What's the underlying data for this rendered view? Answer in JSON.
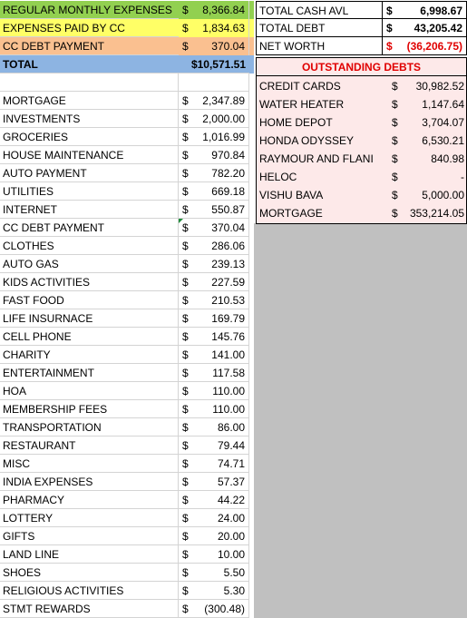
{
  "colors": {
    "green": "#92d050",
    "yellow": "#ffff66",
    "orange": "#fac090",
    "blue": "#8db4e2",
    "debts_bg": "#fde9e9",
    "red_text": "#e00000",
    "dark_green": "#1f8a3a"
  },
  "summary": [
    {
      "label": "REGULAR MONTHLY EXPENSES",
      "cur": "$",
      "value": "8,366.84"
    },
    {
      "label": "EXPENSES PAID BY CC",
      "cur": "$",
      "value": "1,834.63"
    },
    {
      "label": "CC DEBT PAYMENT",
      "cur": "$",
      "value": "370.04"
    },
    {
      "label": "TOTAL",
      "value": "$10,571.51"
    }
  ],
  "expenses": [
    {
      "label": "MORTGAGE",
      "cur": "$",
      "value": "2,347.89"
    },
    {
      "label": "INVESTMENTS",
      "cur": "$",
      "value": "2,000.00"
    },
    {
      "label": "GROCERIES",
      "cur": "$",
      "value": "1,016.99"
    },
    {
      "label": "HOUSE MAINTENANCE",
      "cur": "$",
      "value": "970.84"
    },
    {
      "label": "AUTO PAYMENT",
      "cur": "$",
      "value": "782.20"
    },
    {
      "label": "UTILITIES",
      "cur": "$",
      "value": "669.18"
    },
    {
      "label": "INTERNET",
      "cur": "$",
      "value": "550.87"
    },
    {
      "label": "CC DEBT PAYMENT",
      "cur": "$",
      "value": "370.04"
    },
    {
      "label": "CLOTHES",
      "cur": "$",
      "value": "286.06"
    },
    {
      "label": "AUTO GAS",
      "cur": "$",
      "value": "239.13"
    },
    {
      "label": "KIDS ACTIVITIES",
      "cur": "$",
      "value": "227.59"
    },
    {
      "label": "FAST FOOD",
      "cur": "$",
      "value": "210.53"
    },
    {
      "label": "LIFE INSURNACE",
      "cur": "$",
      "value": "169.79"
    },
    {
      "label": "CELL PHONE",
      "cur": "$",
      "value": "145.76"
    },
    {
      "label": "CHARITY",
      "cur": "$",
      "value": "141.00"
    },
    {
      "label": "ENTERTAINMENT",
      "cur": "$",
      "value": "117.58"
    },
    {
      "label": "HOA",
      "cur": "$",
      "value": "110.00"
    },
    {
      "label": "MEMBERSHIP FEES",
      "cur": "$",
      "value": "110.00"
    },
    {
      "label": "TRANSPORTATION",
      "cur": "$",
      "value": "86.00"
    },
    {
      "label": "RESTAURANT",
      "cur": "$",
      "value": "79.44"
    },
    {
      "label": "MISC",
      "cur": "$",
      "value": "74.71"
    },
    {
      "label": "INDIA EXPENSES",
      "cur": "$",
      "value": "57.37"
    },
    {
      "label": "PHARMACY",
      "cur": "$",
      "value": "44.22"
    },
    {
      "label": "LOTTERY",
      "cur": "$",
      "value": "24.00"
    },
    {
      "label": "GIFTS",
      "cur": "$",
      "value": "20.00"
    },
    {
      "label": "LAND LINE",
      "cur": "$",
      "value": "10.00"
    },
    {
      "label": "SHOES",
      "cur": "$",
      "value": "5.50"
    },
    {
      "label": "RELIGIOUS ACTIVITIES",
      "cur": "$",
      "value": "5.30"
    },
    {
      "label": "STMT REWARDS",
      "cur": "$",
      "value": "(300.48)"
    }
  ],
  "totals": [
    {
      "label": "TOTAL CASH AVL",
      "cur": "$",
      "value": "6,998.67"
    },
    {
      "label": "TOTAL DEBT",
      "cur": "$",
      "value": "43,205.42"
    },
    {
      "label": "NET WORTH",
      "cur": "$",
      "value": "(36,206.75)"
    }
  ],
  "debts": {
    "title": "OUTSTANDING DEBTS",
    "items": [
      {
        "label": "CREDIT CARDS",
        "cur": "$",
        "value": "30,982.52"
      },
      {
        "label": "WATER HEATER",
        "cur": "$",
        "value": "1,147.64"
      },
      {
        "label": "HOME DEPOT",
        "cur": "$",
        "value": "3,704.07"
      },
      {
        "label": "HONDA ODYSSEY",
        "cur": "$",
        "value": "6,530.21"
      },
      {
        "label": "RAYMOUR AND FLANI",
        "cur": "$",
        "value": "840.98"
      },
      {
        "label": "HELOC",
        "cur": "$",
        "value": "-"
      },
      {
        "label": "VISHU BAVA",
        "cur": "$",
        "value": "5,000.00"
      },
      {
        "label": "MORTGAGE",
        "cur": "$",
        "value": "353,214.05"
      }
    ]
  }
}
